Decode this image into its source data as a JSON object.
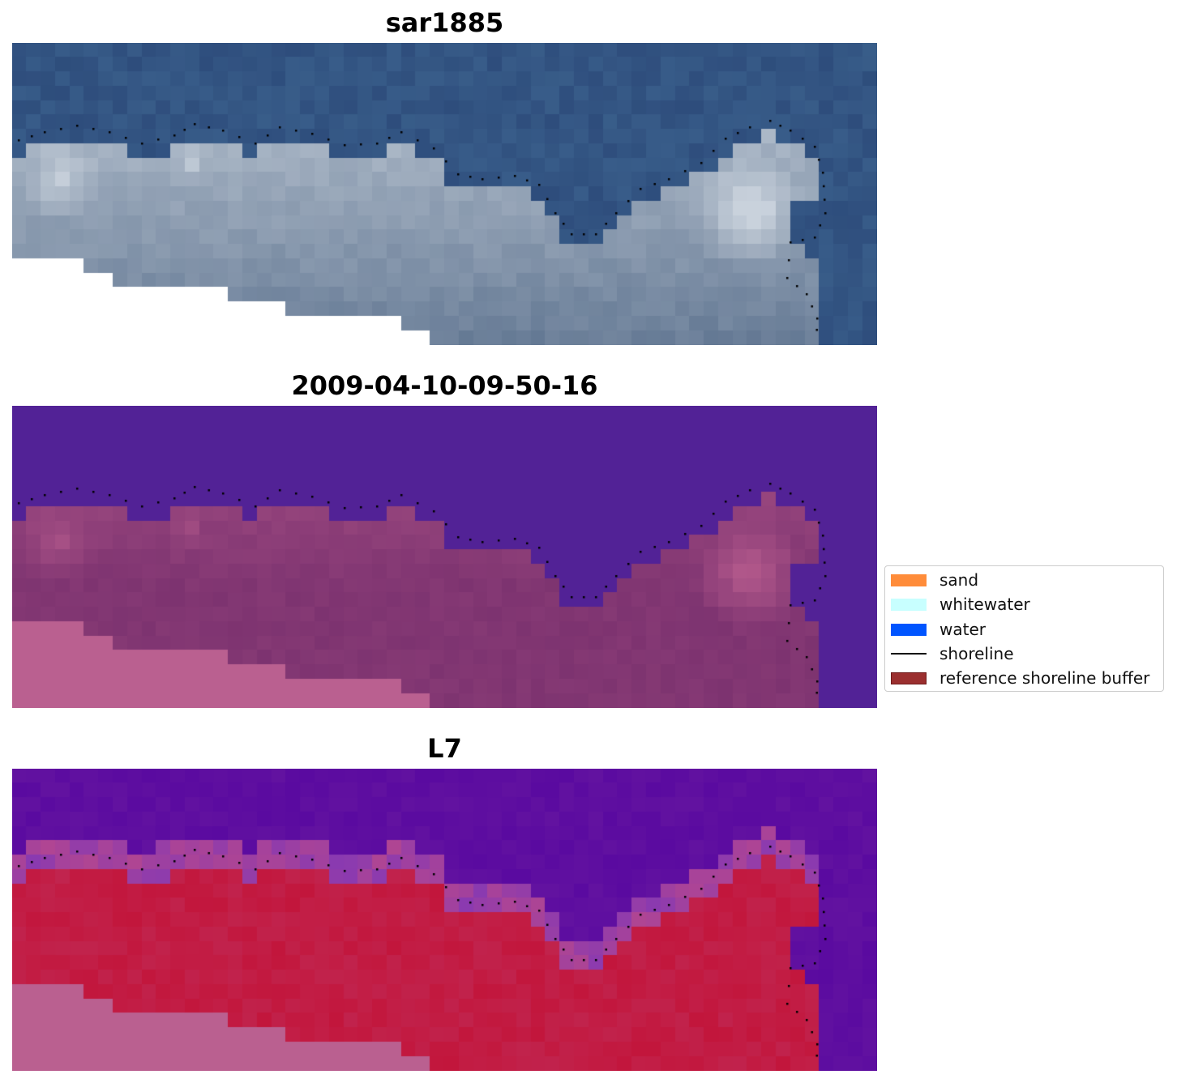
{
  "panels": [
    {
      "title": "sar1885",
      "kind": "rgb"
    },
    {
      "title": "2009-04-10-09-50-16",
      "kind": "classification"
    },
    {
      "title": "L7",
      "kind": "index"
    }
  ],
  "legend": {
    "items": [
      {
        "label": "sand",
        "color": "#ff8c3a",
        "type": "patch"
      },
      {
        "label": "whitewater",
        "color": "#c8ffff",
        "type": "patch"
      },
      {
        "label": "water",
        "color": "#0055ff",
        "type": "patch"
      },
      {
        "label": "shoreline",
        "color": "#000000",
        "type": "line"
      },
      {
        "label": "reference shoreline buffer",
        "color": "#9b2f2f",
        "border": "#6e1a1a",
        "type": "patch"
      }
    ]
  },
  "colors": {
    "rgb_water": "#2e4d7c",
    "rgb_whitewater": "#c9d2dc",
    "class_water": "#522296",
    "class_land": "#7d3370",
    "class_nodata": "#ba6090",
    "index_water": "#6212a0",
    "index_land": "#c2163c",
    "index_nodata": "#ba6090"
  }
}
